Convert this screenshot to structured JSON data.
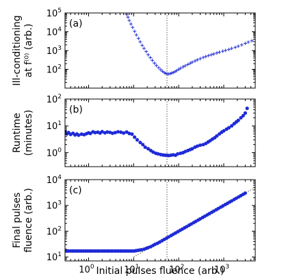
{
  "chart_data": [
    {
      "type": "scatter",
      "panel_label": "(a)",
      "ylabel_lines": [
        "Ill-conditioning",
        "at f⁽⁰⁾ (arb.)"
      ],
      "xscale": "log",
      "yscale": "log",
      "xlim": [
        0.3,
        5000
      ],
      "ylim": [
        10,
        100000
      ],
      "yticks": [
        {
          "v": 100,
          "base": "10",
          "exp": "2"
        },
        {
          "v": 1000,
          "base": "10",
          "exp": "3"
        },
        {
          "v": 10000,
          "base": "10",
          "exp": "4"
        },
        {
          "v": 100000,
          "base": "10",
          "exp": "5"
        }
      ],
      "marker": "plus",
      "color": "#1f2bd6",
      "vline": {
        "x": 55,
        "style": "dotted",
        "color": "#555555"
      },
      "x": [
        7,
        7.5,
        8,
        8.7,
        9.5,
        10.5,
        11.5,
        12.8,
        14,
        15.5,
        17,
        19,
        21,
        23.5,
        26,
        29,
        32,
        36,
        40,
        44,
        48,
        52,
        56,
        60,
        65,
        70,
        76,
        83,
        90,
        100,
        110,
        125,
        140,
        160,
        180,
        200,
        230,
        260,
        300,
        350,
        400,
        460,
        530,
        600,
        700,
        800,
        950,
        1100,
        1300,
        1500,
        1800,
        2100,
        2500,
        3000,
        3500,
        4200,
        5000
      ],
      "y": [
        85000,
        60000,
        40000,
        26000,
        17000,
        10500,
        6800,
        4400,
        2900,
        1900,
        1300,
        880,
        600,
        420,
        300,
        215,
        160,
        122,
        95,
        78,
        66,
        60,
        57,
        57,
        59,
        63,
        68,
        75,
        85,
        100,
        115,
        135,
        155,
        180,
        210,
        240,
        280,
        320,
        370,
        430,
        480,
        540,
        600,
        660,
        740,
        820,
        920,
        1020,
        1150,
        1300,
        1480,
        1700,
        2000,
        2400,
        2800,
        3300,
        4000
      ]
    },
    {
      "type": "scatter",
      "panel_label": "(b)",
      "ylabel_lines": [
        "Runtime",
        "(minutes)"
      ],
      "xscale": "log",
      "yscale": "log",
      "xlim": [
        0.3,
        5000
      ],
      "ylim": [
        0.3,
        100
      ],
      "yticks": [
        {
          "v": 1,
          "base": "10",
          "exp": "0"
        },
        {
          "v": 10,
          "base": "10",
          "exp": "1"
        },
        {
          "v": 100,
          "base": "10",
          "exp": "2"
        }
      ],
      "marker": "dot",
      "color": "#1f2bd6",
      "vline": {
        "x": 55,
        "style": "dotted",
        "color": "#555555"
      },
      "x": [
        0.3,
        0.33,
        0.36,
        0.4,
        0.45,
        0.5,
        0.55,
        0.6,
        0.7,
        0.8,
        0.9,
        1.0,
        1.1,
        1.25,
        1.4,
        1.6,
        1.8,
        2.0,
        2.3,
        2.6,
        3.0,
        3.4,
        3.9,
        4.5,
        5.2,
        6.0,
        7.0,
        8.0,
        9.2,
        10.5,
        12,
        14,
        16,
        18,
        21,
        24,
        27,
        31,
        35,
        40,
        45,
        50,
        55,
        60,
        67,
        75,
        85,
        95,
        110,
        125,
        140,
        160,
        180,
        200,
        230,
        260,
        300,
        350,
        400,
        450,
        500,
        560,
        630,
        700,
        800,
        900,
        1000,
        1150,
        1300,
        1500,
        1700,
        1900,
        2100,
        2400,
        2700,
        3000,
        3300
      ],
      "y": [
        6.2,
        5.0,
        5.6,
        4.8,
        5.3,
        4.6,
        5.0,
        4.5,
        4.9,
        4.7,
        5.1,
        5.5,
        5.2,
        6.0,
        5.6,
        5.8,
        5.4,
        6.1,
        5.5,
        5.9,
        5.7,
        5.3,
        5.6,
        6.0,
        5.8,
        5.4,
        5.9,
        5.2,
        4.9,
        3.8,
        3.0,
        2.4,
        2.0,
        1.6,
        1.4,
        1.2,
        1.05,
        0.95,
        0.9,
        0.85,
        0.82,
        0.8,
        0.8,
        0.78,
        0.8,
        0.83,
        0.8,
        0.9,
        0.95,
        1.0,
        1.1,
        1.2,
        1.3,
        1.4,
        1.6,
        1.75,
        1.9,
        2.0,
        2.2,
        2.5,
        2.8,
        3.2,
        3.6,
        4.2,
        5.0,
        5.8,
        6.5,
        7.5,
        8.5,
        10,
        12,
        14,
        16,
        20,
        24,
        30,
        45
      ]
    },
    {
      "type": "scatter",
      "panel_label": "(c)",
      "ylabel_lines": [
        "Final pulses",
        "fluence (arb.)"
      ],
      "xlabel": "Initial pulses fluence (arb.)",
      "xscale": "log",
      "yscale": "log",
      "xlim": [
        0.3,
        5000
      ],
      "ylim": [
        7,
        10000
      ],
      "yticks": [
        {
          "v": 10,
          "base": "10",
          "exp": "1"
        },
        {
          "v": 100,
          "base": "10",
          "exp": "2"
        },
        {
          "v": 1000,
          "base": "10",
          "exp": "3"
        },
        {
          "v": 10000,
          "base": "10",
          "exp": "4"
        }
      ],
      "xticks": [
        {
          "v": 1,
          "base": "10",
          "exp": "0"
        },
        {
          "v": 10,
          "base": "10",
          "exp": "1"
        },
        {
          "v": 100,
          "base": "10",
          "exp": "2"
        },
        {
          "v": 1000,
          "base": "10",
          "exp": "3"
        }
      ],
      "marker": "dot",
      "color": "#1f2bd6",
      "vline": {
        "x": 55,
        "style": "dotted",
        "color": "#555555"
      },
      "diag_line": {
        "style": "dotted",
        "color": "#555555",
        "x": [
          10,
          5000
        ],
        "y": [
          10,
          5000
        ]
      },
      "x": [
        0.3,
        0.33,
        0.36,
        0.4,
        0.44,
        0.48,
        0.53,
        0.58,
        0.64,
        0.7,
        0.78,
        0.86,
        0.95,
        1.05,
        1.15,
        1.27,
        1.4,
        1.55,
        1.7,
        1.9,
        2.1,
        2.3,
        2.55,
        2.8,
        3.1,
        3.4,
        3.8,
        4.2,
        4.6,
        5.1,
        5.6,
        6.2,
        6.8,
        7.5,
        8.3,
        9.2,
        10.2,
        11.2,
        12.4,
        13.7,
        15,
        17,
        19,
        21,
        24,
        27,
        30,
        34,
        38,
        43,
        48,
        54,
        60,
        68,
        76,
        85,
        96,
        108,
        120,
        135,
        150,
        170,
        190,
        215,
        240,
        270,
        300,
        340,
        380,
        430,
        480,
        540,
        600,
        680,
        760,
        860,
        960,
        1080,
        1200,
        1350,
        1500,
        1700,
        1900,
        2150,
        2400,
        2700,
        3000
      ],
      "y": [
        17,
        17,
        17,
        17,
        17,
        17,
        17,
        17,
        17,
        17,
        17,
        17,
        17,
        17,
        17,
        17,
        17,
        17,
        17,
        17,
        17,
        17,
        17,
        17,
        17,
        17,
        17,
        17,
        17,
        17,
        17,
        17,
        17,
        17,
        17,
        17,
        17,
        17.5,
        18,
        18.5,
        19,
        20,
        21.5,
        23,
        25,
        28,
        31,
        34,
        38,
        43,
        48,
        54,
        60,
        68,
        76,
        85,
        96,
        108,
        120,
        135,
        150,
        170,
        190,
        215,
        240,
        270,
        300,
        340,
        380,
        430,
        480,
        540,
        600,
        680,
        760,
        860,
        960,
        1080,
        1200,
        1350,
        1500,
        1700,
        1900,
        2150,
        2400,
        2700,
        3000
      ]
    }
  ]
}
